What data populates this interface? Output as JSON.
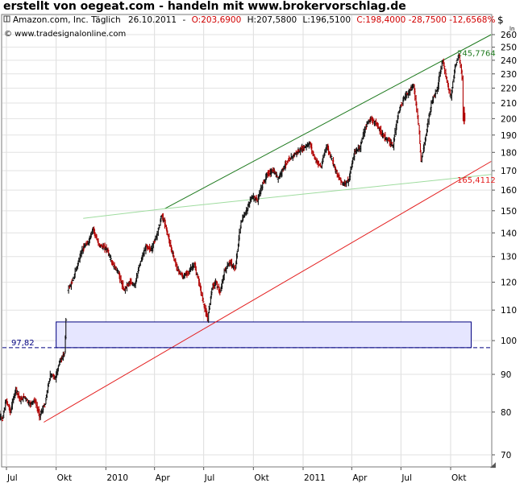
{
  "banner": "erstellt von oegeat.com - handeln mit www.brokervorschlag.de",
  "header": {
    "instrument": "Amazon.com, Inc. Täglich",
    "date": "26.10.2011",
    "sep1": "-",
    "open": "O:203,6900",
    "high": "H:207,5800",
    "low": "L:196,5100",
    "close_change": "C:198,4000 -28,7500 -12,6568%",
    "copyright": "© www.tradesignalonline.com"
  },
  "chart_data": {
    "type": "candlestick",
    "currency_symbol": "$",
    "y_scale": "log",
    "ylim": [
      68,
      265
    ],
    "y_ticks": [
      70,
      80,
      90,
      100,
      110,
      120,
      130,
      140,
      150,
      160,
      170,
      180,
      190,
      200,
      210,
      220,
      230,
      240,
      250,
      260
    ],
    "x_ticks": [
      {
        "label": "Jul",
        "date": "2009-07"
      },
      {
        "label": "Okt",
        "date": "2009-10"
      },
      {
        "label": "2010",
        "date": "2010-01"
      },
      {
        "label": "Apr",
        "date": "2010-04"
      },
      {
        "label": "Jul",
        "date": "2010-07"
      },
      {
        "label": "Okt",
        "date": "2010-10"
      },
      {
        "label": "2011",
        "date": "2011-01"
      },
      {
        "label": "Apr",
        "date": "2011-04"
      },
      {
        "label": "Jul",
        "date": "2011-07"
      },
      {
        "label": "Okt",
        "date": "2011-10"
      }
    ],
    "price_path": [
      {
        "date": "2009-06-10",
        "price": 82
      },
      {
        "date": "2009-06-18",
        "price": 80
      },
      {
        "date": "2009-06-25",
        "price": 78
      },
      {
        "date": "2009-07-02",
        "price": 83
      },
      {
        "date": "2009-07-10",
        "price": 80
      },
      {
        "date": "2009-07-20",
        "price": 86
      },
      {
        "date": "2009-07-28",
        "price": 83
      },
      {
        "date": "2009-08-05",
        "price": 84
      },
      {
        "date": "2009-08-14",
        "price": 82
      },
      {
        "date": "2009-08-24",
        "price": 83
      },
      {
        "date": "2009-09-02",
        "price": 79
      },
      {
        "date": "2009-09-12",
        "price": 82
      },
      {
        "date": "2009-09-22",
        "price": 90
      },
      {
        "date": "2009-10-01",
        "price": 89
      },
      {
        "date": "2009-10-10",
        "price": 94
      },
      {
        "date": "2009-10-18",
        "price": 96
      },
      {
        "date": "2009-10-23",
        "price": 117
      },
      {
        "date": "2009-11-01",
        "price": 120
      },
      {
        "date": "2009-11-10",
        "price": 126
      },
      {
        "date": "2009-11-20",
        "price": 133
      },
      {
        "date": "2009-12-01",
        "price": 136
      },
      {
        "date": "2009-12-10",
        "price": 142
      },
      {
        "date": "2009-12-20",
        "price": 135
      },
      {
        "date": "2010-01-05",
        "price": 133
      },
      {
        "date": "2010-01-15",
        "price": 127
      },
      {
        "date": "2010-01-25",
        "price": 124
      },
      {
        "date": "2010-02-05",
        "price": 117
      },
      {
        "date": "2010-02-15",
        "price": 120
      },
      {
        "date": "2010-02-25",
        "price": 119
      },
      {
        "date": "2010-03-08",
        "price": 128
      },
      {
        "date": "2010-03-18",
        "price": 134
      },
      {
        "date": "2010-03-28",
        "price": 133
      },
      {
        "date": "2010-04-08",
        "price": 140
      },
      {
        "date": "2010-04-16",
        "price": 148
      },
      {
        "date": "2010-04-23",
        "price": 143
      },
      {
        "date": "2010-05-05",
        "price": 132
      },
      {
        "date": "2010-05-15",
        "price": 125
      },
      {
        "date": "2010-05-25",
        "price": 122
      },
      {
        "date": "2010-06-05",
        "price": 124
      },
      {
        "date": "2010-06-15",
        "price": 127
      },
      {
        "date": "2010-06-25",
        "price": 119
      },
      {
        "date": "2010-07-05",
        "price": 110
      },
      {
        "date": "2010-07-10",
        "price": 107
      },
      {
        "date": "2010-07-18",
        "price": 118
      },
      {
        "date": "2010-07-25",
        "price": 120
      },
      {
        "date": "2010-08-02",
        "price": 116
      },
      {
        "date": "2010-08-10",
        "price": 124
      },
      {
        "date": "2010-08-20",
        "price": 128
      },
      {
        "date": "2010-08-30",
        "price": 125
      },
      {
        "date": "2010-09-10",
        "price": 145
      },
      {
        "date": "2010-09-20",
        "price": 150
      },
      {
        "date": "2010-09-30",
        "price": 157
      },
      {
        "date": "2010-10-10",
        "price": 155
      },
      {
        "date": "2010-10-20",
        "price": 163
      },
      {
        "date": "2010-10-28",
        "price": 168
      },
      {
        "date": "2010-11-08",
        "price": 170
      },
      {
        "date": "2010-11-18",
        "price": 166
      },
      {
        "date": "2010-11-28",
        "price": 172
      },
      {
        "date": "2010-12-08",
        "price": 176
      },
      {
        "date": "2010-12-18",
        "price": 179
      },
      {
        "date": "2011-01-05",
        "price": 183
      },
      {
        "date": "2011-01-15",
        "price": 185
      },
      {
        "date": "2011-01-25",
        "price": 176
      },
      {
        "date": "2011-02-05",
        "price": 172
      },
      {
        "date": "2011-02-15",
        "price": 184
      },
      {
        "date": "2011-02-25",
        "price": 176
      },
      {
        "date": "2011-03-08",
        "price": 167
      },
      {
        "date": "2011-03-18",
        "price": 163
      },
      {
        "date": "2011-03-28",
        "price": 165
      },
      {
        "date": "2011-04-08",
        "price": 180
      },
      {
        "date": "2011-04-18",
        "price": 183
      },
      {
        "date": "2011-04-28",
        "price": 195
      },
      {
        "date": "2011-05-08",
        "price": 200
      },
      {
        "date": "2011-05-18",
        "price": 197
      },
      {
        "date": "2011-05-28",
        "price": 191
      },
      {
        "date": "2011-06-08",
        "price": 187
      },
      {
        "date": "2011-06-18",
        "price": 184
      },
      {
        "date": "2011-06-28",
        "price": 204
      },
      {
        "date": "2011-07-08",
        "price": 213
      },
      {
        "date": "2011-07-18",
        "price": 218
      },
      {
        "date": "2011-07-26",
        "price": 222
      },
      {
        "date": "2011-08-04",
        "price": 197
      },
      {
        "date": "2011-08-09",
        "price": 175
      },
      {
        "date": "2011-08-18",
        "price": 190
      },
      {
        "date": "2011-08-28",
        "price": 210
      },
      {
        "date": "2011-09-08",
        "price": 220
      },
      {
        "date": "2011-09-18",
        "price": 240
      },
      {
        "date": "2011-09-26",
        "price": 224
      },
      {
        "date": "2011-10-03",
        "price": 214
      },
      {
        "date": "2011-10-11",
        "price": 235
      },
      {
        "date": "2011-10-18",
        "price": 244
      },
      {
        "date": "2011-10-24",
        "price": 227
      },
      {
        "date": "2011-10-26",
        "price": 198.4
      }
    ],
    "last_bar": {
      "date": "2011-10-26",
      "open": 203.69,
      "high": 207.58,
      "low": 196.51,
      "close": 198.4
    },
    "trendlines": [
      {
        "name": "upper channel",
        "color": "#1e7a1e",
        "points": [
          {
            "date": "2010-04-20",
            "price": 151
          },
          {
            "date": "2011-12-15",
            "price": 260
          }
        ],
        "label": "245,7764"
      },
      {
        "name": "upper channel extension",
        "color": "#9fdc9f",
        "points": [
          {
            "date": "2009-11-20",
            "price": 146.5
          },
          {
            "date": "2010-04-20",
            "price": 151
          },
          {
            "date": "2011-12-15",
            "price": 168
          }
        ]
      },
      {
        "name": "lower support",
        "color": "#e31b1b",
        "points": [
          {
            "date": "2009-09-08",
            "price": 77.5
          },
          {
            "date": "2011-12-15",
            "price": 175
          }
        ],
        "label": "165,4112"
      }
    ],
    "horizontal_lines": [
      {
        "price": 97.82,
        "label": "97,82",
        "style": "dashed",
        "color": "#000080"
      }
    ],
    "zones": [
      {
        "from": 97.82,
        "to": 106,
        "start": "2009-10-01",
        "end": "2011-11-08",
        "fill": "#e6e6ff",
        "stroke": "#000080"
      }
    ],
    "grid": true,
    "legend": "none"
  }
}
